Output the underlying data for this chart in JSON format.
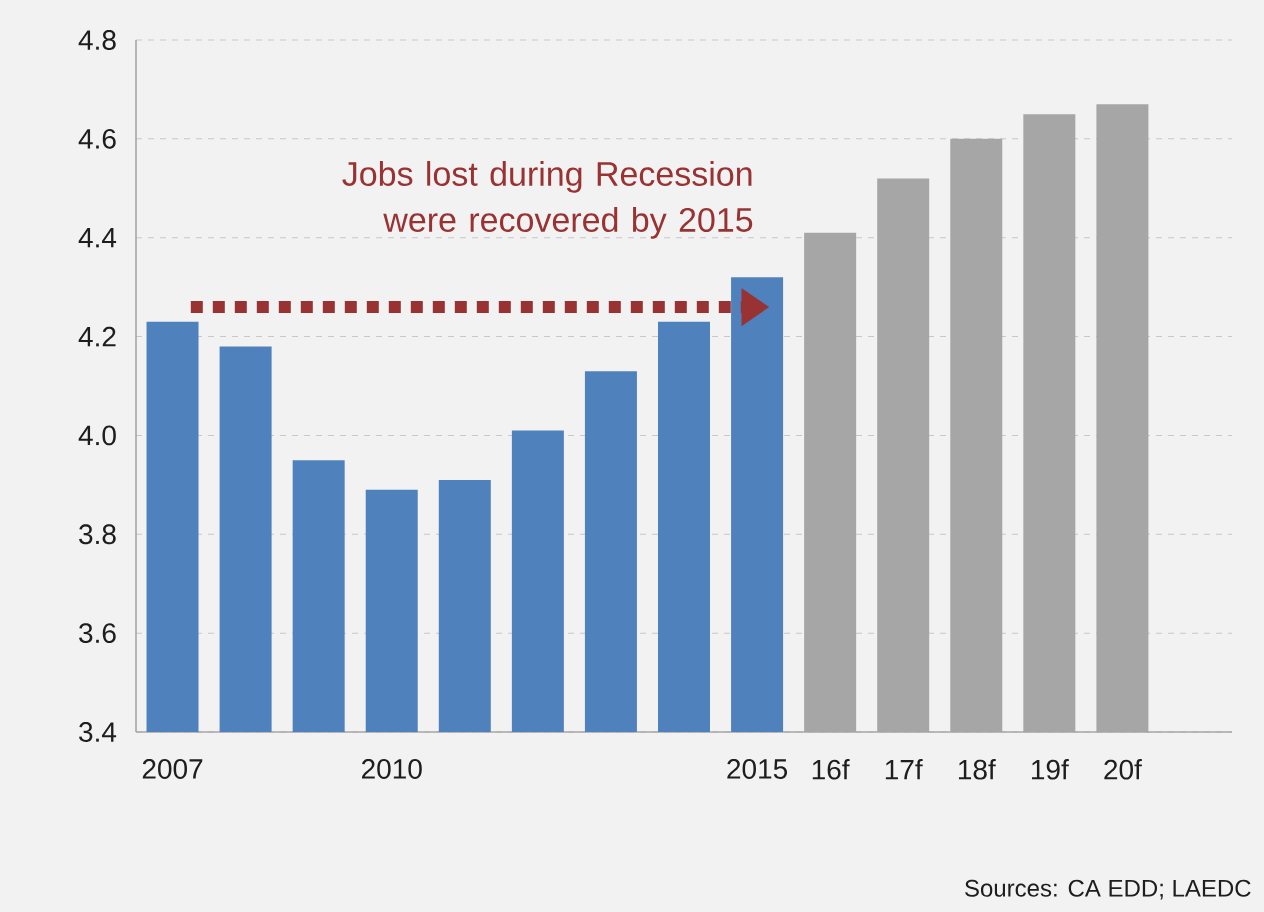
{
  "chart_data": {
    "type": "bar",
    "categories": [
      "2007",
      null,
      null,
      "2010",
      null,
      null,
      null,
      null,
      "2015",
      "16f",
      "17f",
      "18f",
      "19f",
      "20f"
    ],
    "values": [
      4.23,
      4.18,
      3.95,
      3.89,
      3.91,
      4.01,
      4.13,
      4.23,
      4.32,
      4.41,
      4.52,
      4.6,
      4.65,
      4.67
    ],
    "colors": [
      "#4f81bd",
      "#4f81bd",
      "#4f81bd",
      "#4f81bd",
      "#4f81bd",
      "#4f81bd",
      "#4f81bd",
      "#4f81bd",
      "#4f81bd",
      "#a6a6a6",
      "#a6a6a6",
      "#a6a6a6",
      "#a6a6a6",
      "#a6a6a6"
    ],
    "ylim": [
      3.4,
      4.8
    ],
    "yticks": [
      {
        "value": 3.4,
        "label": "3.4"
      },
      {
        "value": 3.6,
        "label": "3.6"
      },
      {
        "value": 3.8,
        "label": "3.8"
      },
      {
        "value": 4.0,
        "label": "4.0"
      },
      {
        "value": 4.2,
        "label": "4.2"
      },
      {
        "value": 4.4,
        "label": "4.4"
      },
      {
        "value": 4.6,
        "label": "4.6"
      },
      {
        "value": 4.8,
        "label": "4.8"
      }
    ],
    "grid": "y",
    "annotations": [
      "Jobs lost during Recession were recovered by 2015",
      "Sources: CA EDD; LAEDC"
    ]
  }
}
